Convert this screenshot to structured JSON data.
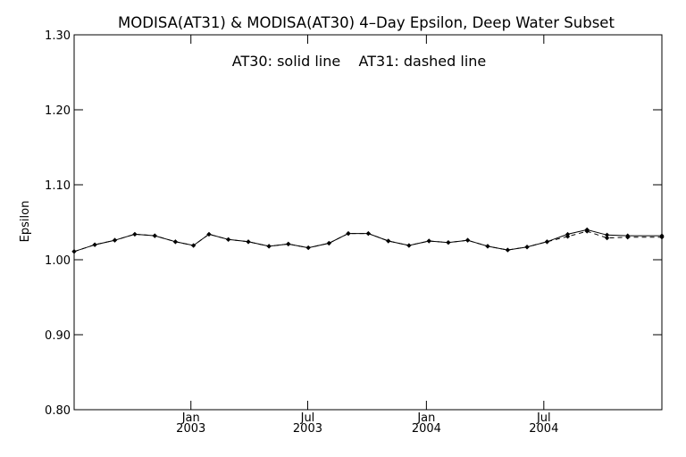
{
  "chart_data": {
    "type": "line",
    "title": "MODISA(AT31) & MODISA(AT30) 4–Day Epsilon, Deep Water Subset",
    "annotation": "AT30: solid line    AT31: dashed line",
    "xlabel": "",
    "ylabel": "Epsilon",
    "ylim": [
      0.8,
      1.3
    ],
    "yticks": [
      "0.80",
      "0.90",
      "1.00",
      "1.10",
      "1.20",
      "1.30"
    ],
    "xlim": [
      "2002-07-04",
      "2004-12-31"
    ],
    "xticks": [
      {
        "date": "2003-01-01",
        "month": "Jan",
        "year": "2003"
      },
      {
        "date": "2003-07-01",
        "month": "Jul",
        "year": "2003"
      },
      {
        "date": "2004-01-01",
        "month": "Jan",
        "year": "2004"
      },
      {
        "date": "2004-07-01",
        "month": "Jul",
        "year": "2004"
      }
    ],
    "grid": false,
    "legend": "none",
    "x": [
      "2002-07-04",
      "2002-08-05",
      "2002-09-05",
      "2002-10-06",
      "2002-11-06",
      "2002-12-08",
      "2003-01-05",
      "2003-01-29",
      "2003-02-28",
      "2003-03-31",
      "2003-05-02",
      "2003-06-01",
      "2003-07-02",
      "2003-08-03",
      "2003-09-02",
      "2003-10-03",
      "2003-11-03",
      "2003-12-05",
      "2004-01-05",
      "2004-02-04",
      "2004-03-05",
      "2004-04-05",
      "2004-05-06",
      "2004-06-05",
      "2004-07-06",
      "2004-08-07",
      "2004-09-06",
      "2004-10-07",
      "2004-11-08",
      "2004-12-09",
      "2004-12-31"
    ],
    "series": [
      {
        "name": "AT30",
        "style": "solid",
        "values": [
          1.011,
          1.02,
          1.026,
          1.034,
          1.032,
          1.024,
          1.019,
          1.034,
          1.027,
          1.024,
          1.018,
          1.021,
          1.016,
          1.022,
          1.035,
          1.035,
          1.025,
          1.019,
          1.025,
          1.023,
          1.026,
          1.018,
          1.013,
          1.017,
          1.024,
          1.034,
          1.04,
          1.033,
          1.032,
          null,
          1.032
        ]
      },
      {
        "name": "AT31",
        "style": "dashed",
        "values": [
          1.011,
          1.02,
          1.026,
          1.034,
          1.032,
          1.024,
          1.019,
          1.034,
          1.027,
          1.024,
          1.018,
          1.021,
          1.016,
          1.022,
          1.035,
          1.035,
          1.025,
          1.019,
          1.025,
          1.023,
          1.026,
          1.018,
          1.013,
          1.017,
          1.024,
          1.031,
          1.038,
          1.029,
          1.03,
          null,
          1.03
        ]
      }
    ]
  }
}
